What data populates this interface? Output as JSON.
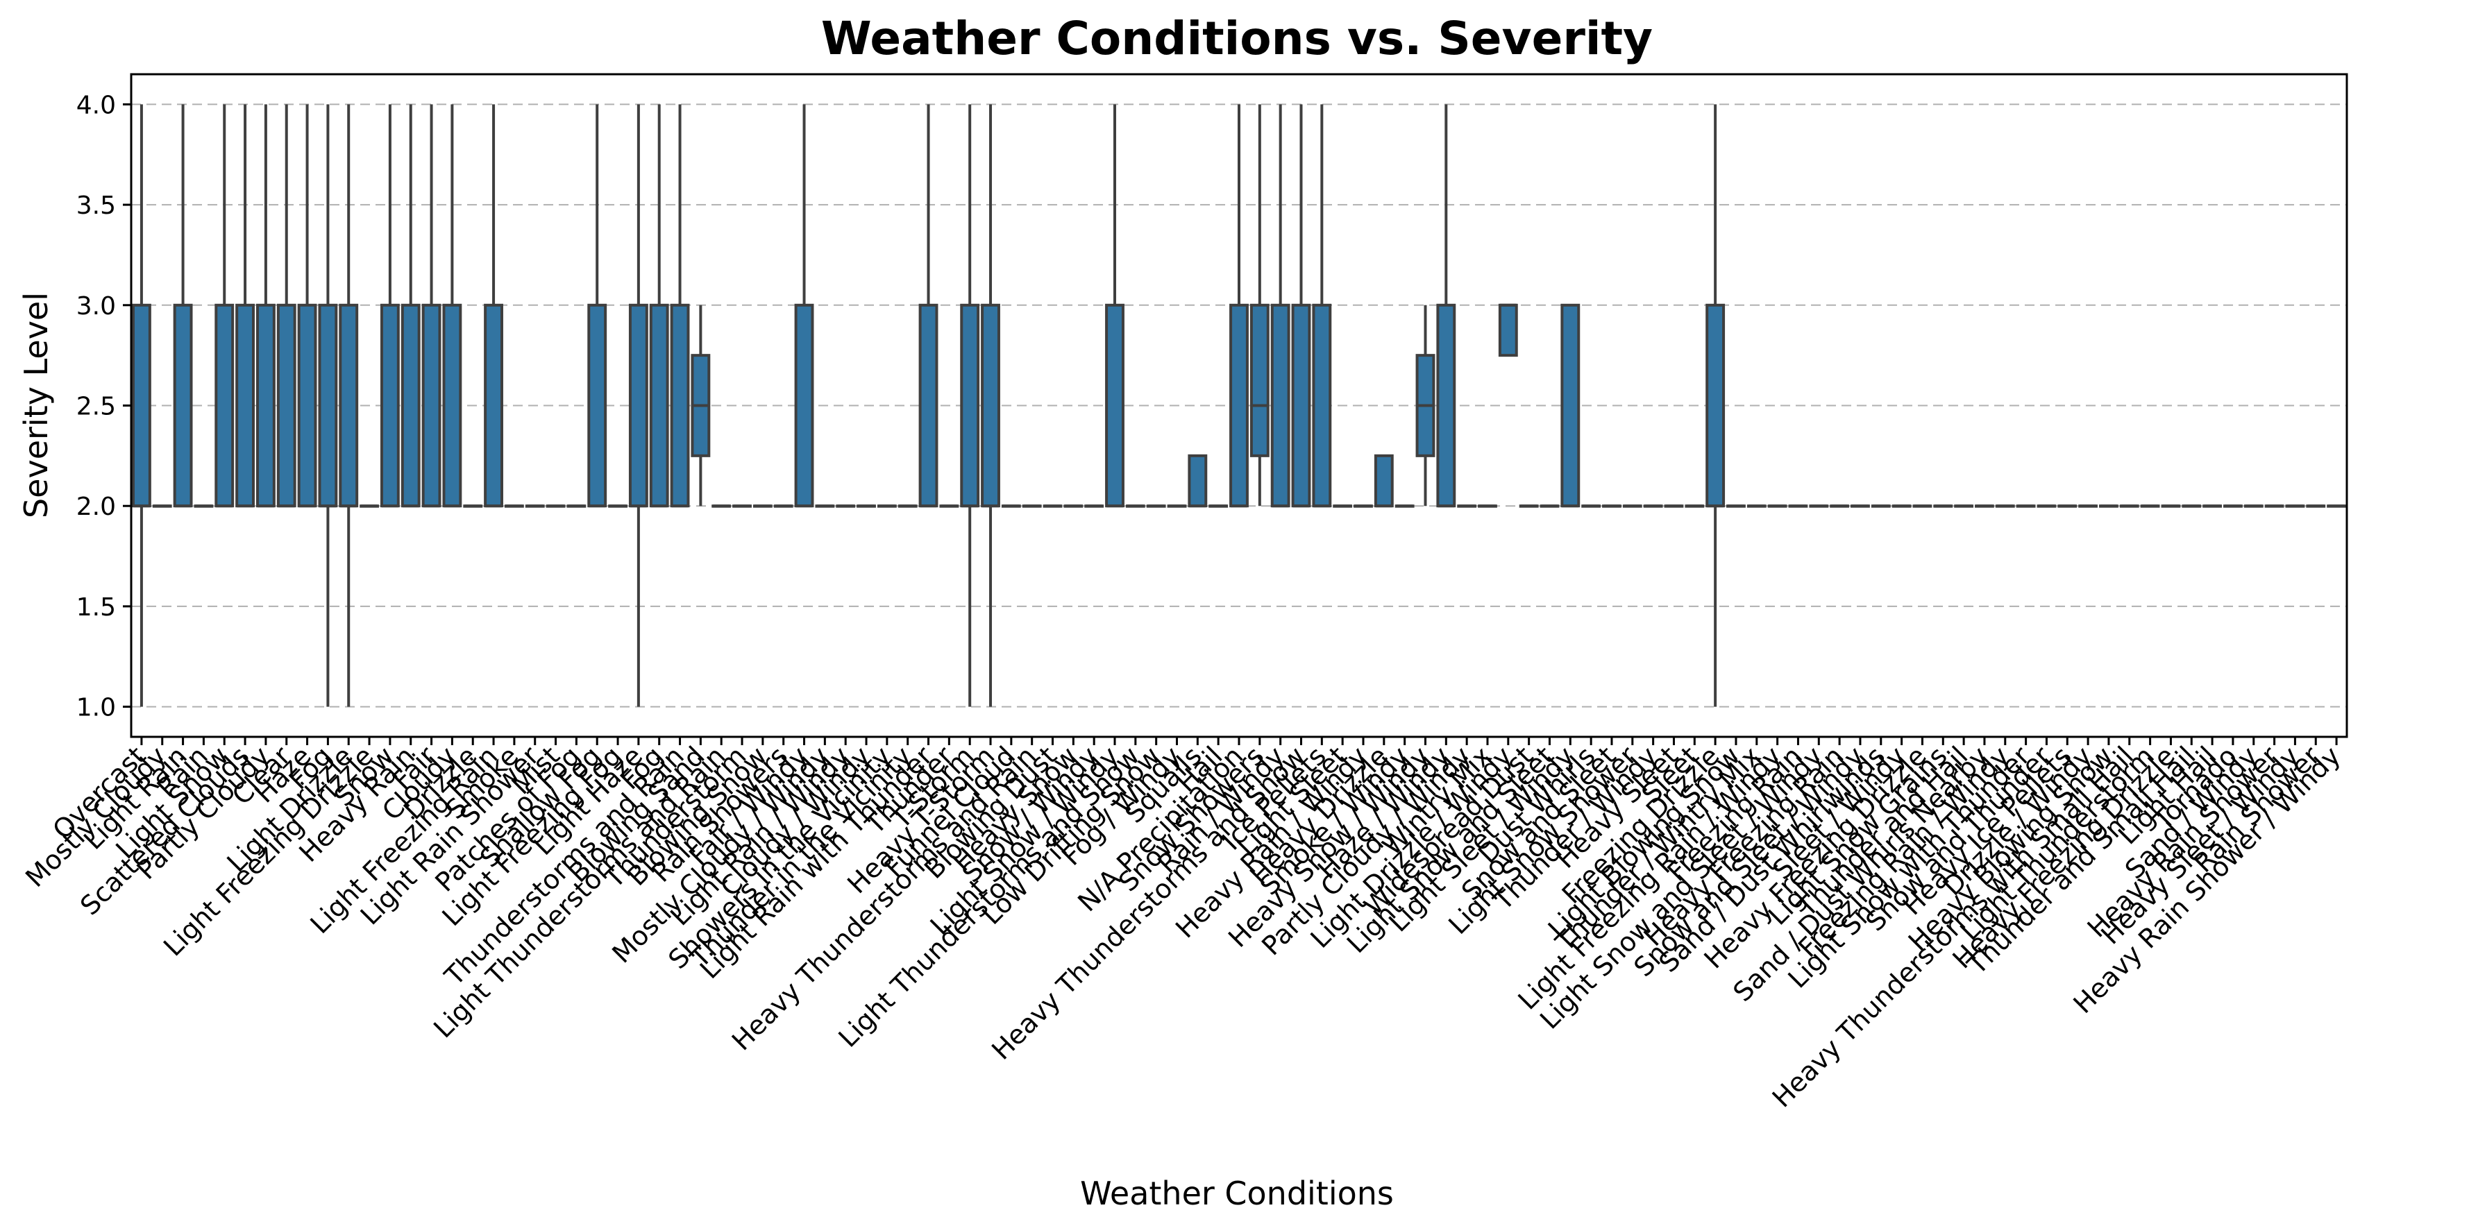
{
  "chart_data": {
    "type": "box",
    "title": "Weather Conditions vs. Severity",
    "xlabel": "Weather Conditions",
    "ylabel": "Severity Level",
    "ylim": [
      0.85,
      4.15
    ],
    "yticks": [
      1.0,
      1.5,
      2.0,
      2.5,
      3.0,
      3.5,
      4.0
    ],
    "grid": "y-dashed",
    "box_color": "#3274a1",
    "categories": [
      "Overcast",
      "Mostly Cloudy",
      "Light Rain",
      "Rain",
      "Light Snow",
      "Scattered Clouds",
      "Partly Cloudy",
      "Clear",
      "Haze",
      "Fog",
      "Light Drizzle",
      "Light Freezing Drizzle",
      "Snow",
      "Heavy Rain",
      "Fair",
      "Cloudy",
      "Drizzle",
      "Light Freezing Rain",
      "Smoke",
      "Light Rain Shower",
      "Mist",
      "Patches of Fog",
      "Shallow Fog",
      "Light Freezing Fog",
      "Light Haze",
      "Fog",
      "Thunderstorms and Rain",
      "Blowing Sand",
      "Light Thunderstorms and Rain",
      "Thunderstorm",
      "Blowing Snow",
      "Rain Showers",
      "Fair / Windy",
      "Mostly Cloudy / Windy",
      "Light Rain / Windy",
      "Cloudy / Windy",
      "Showers in the Vicinity",
      "Thunder in the Vicinity",
      "Light Rain with Thunder",
      "Thunder",
      "T-Storm",
      "Heavy T-Storm",
      "Funnel Cloud",
      "Heavy Thunderstorms and Rain",
      "Blowing Dust",
      "Heavy Snow",
      "Snow / Windy",
      "Light Snow / Windy",
      "Light Thunderstorms and Snow",
      "Low Drifting Snow",
      "Fog / Windy",
      "Squalls",
      "Hail",
      "N/A Precipitation",
      "Snow Showers",
      "Rain / Windy",
      "Heavy Thunderstorms and Snow",
      "Ice Pellets",
      "Light Sleet",
      "Heavy Rain / Windy",
      "Heavy Drizzle",
      "Smoke / Windy",
      "Heavy Snow / Windy",
      "Haze / Windy",
      "Partly Cloudy / Windy",
      "Wintry Mix",
      "Light Drizzle / Windy",
      "Widespread Dust",
      "Light Snow and Sleet",
      "Light Sleet / Windy",
      "Dust Whirls",
      "Snow and Sleet",
      "Light Snow Shower",
      "Thunder / Windy",
      "Heavy Sleet",
      "Sleet",
      "Freezing Drizzle",
      "Light Blowing Snow",
      "Thunder / Wintry Mix",
      "Light Freezing Rain / Windy",
      "Freezing Rain",
      "Light Snow and Sleet / Windy",
      "Heavy Freezing Rain",
      "Snow and Sleet / Windy",
      "Sand / Dust Whirlwinds",
      "Sleet / Windy",
      "Heavy Freezing Drizzle",
      "Light Snow Grains",
      "Thunder and Hail",
      "Sand / Dust Whirls Nearby",
      "Freezing Rain / Windy",
      "Light Snow with Thunder",
      "Snow and Thunder",
      "Heavy Ice Pellets",
      "Drizzle / Windy",
      "Heavy Blowing Snow",
      "Heavy Thunderstorms with Small Hail",
      "Light Thunderstorm",
      "Heavy Freezing Drizzle",
      "Thunder and Small Hail",
      "Light Hail",
      "Tornado",
      "Sand / Windy",
      "Heavy Rain Shower",
      "Heavy Sleet / Windy",
      "Rain Shower",
      "Heavy Rain Shower / Windy"
    ],
    "boxes": [
      [
        1,
        2,
        2,
        3,
        4
      ],
      [
        2,
        2,
        2,
        2,
        2
      ],
      [
        2,
        2,
        2,
        3,
        4
      ],
      [
        2,
        2,
        2,
        2,
        2
      ],
      [
        2,
        2,
        2,
        3,
        4
      ],
      [
        2,
        2,
        2,
        3,
        4
      ],
      [
        2,
        2,
        2,
        3,
        4
      ],
      [
        2,
        2,
        2,
        3,
        4
      ],
      [
        2,
        2,
        2,
        3,
        4
      ],
      [
        1,
        2,
        2,
        3,
        4
      ],
      [
        1,
        2,
        2,
        3,
        4
      ],
      [
        2,
        2,
        2,
        2,
        2
      ],
      [
        2,
        2,
        2,
        3,
        4
      ],
      [
        2,
        2,
        2,
        3,
        4
      ],
      [
        2,
        2,
        2,
        3,
        4
      ],
      [
        2,
        2,
        2,
        3,
        4
      ],
      [
        2,
        2,
        2,
        2,
        2
      ],
      [
        2,
        2,
        2,
        3,
        4
      ],
      [
        2,
        2,
        2,
        2,
        2
      ],
      [
        2,
        2,
        2,
        2,
        2
      ],
      [
        2,
        2,
        2,
        2,
        2
      ],
      [
        2,
        2,
        2,
        2,
        2
      ],
      [
        2,
        2,
        2,
        3,
        4
      ],
      [
        2,
        2,
        2,
        2,
        2
      ],
      [
        1,
        2,
        2,
        3,
        4
      ],
      [
        2,
        2,
        2,
        3,
        4
      ],
      [
        2,
        2,
        2,
        3,
        4
      ],
      [
        2,
        2.25,
        2.5,
        2.75,
        3
      ],
      [
        2,
        2,
        2,
        2,
        2
      ],
      [
        2,
        2,
        2,
        2,
        2
      ],
      [
        2,
        2,
        2,
        2,
        2
      ],
      [
        2,
        2,
        2,
        2,
        2
      ],
      [
        2,
        2,
        2,
        3,
        4
      ],
      [
        2,
        2,
        2,
        2,
        2
      ],
      [
        2,
        2,
        2,
        2,
        2
      ],
      [
        2,
        2,
        2,
        2,
        2
      ],
      [
        2,
        2,
        2,
        2,
        2
      ],
      [
        2,
        2,
        2,
        2,
        2
      ],
      [
        2,
        2,
        2,
        3,
        4
      ],
      [
        2,
        2,
        2,
        2,
        2
      ],
      [
        1,
        2,
        2,
        3,
        4
      ],
      [
        1,
        2,
        2,
        3,
        4
      ],
      [
        2,
        2,
        2,
        2,
        2
      ],
      [
        2,
        2,
        2,
        2,
        2
      ],
      [
        2,
        2,
        2,
        2,
        2
      ],
      [
        2,
        2,
        2,
        2,
        2
      ],
      [
        2,
        2,
        2,
        2,
        2
      ],
      [
        2,
        2,
        2,
        3,
        4
      ],
      [
        2,
        2,
        2,
        2,
        2
      ],
      [
        2,
        2,
        2,
        2,
        2
      ],
      [
        2,
        2,
        2,
        2,
        2
      ],
      [
        2,
        2,
        2,
        2.25,
        2.25
      ],
      [
        2,
        2,
        2,
        2,
        2
      ],
      [
        2,
        2,
        2,
        3,
        4
      ],
      [
        2,
        2.25,
        2.5,
        3,
        4
      ],
      [
        2,
        2,
        2,
        3,
        4
      ],
      [
        2,
        2,
        2,
        3,
        4
      ],
      [
        2,
        2,
        2,
        3,
        4
      ],
      [
        2,
        2,
        2,
        2,
        2
      ],
      [
        2,
        2,
        2,
        2,
        2
      ],
      [
        2,
        2,
        2,
        2.25,
        2.25
      ],
      [
        2,
        2,
        2,
        2,
        2
      ],
      [
        2,
        2.25,
        2.5,
        2.75,
        3
      ],
      [
        2,
        2,
        2,
        3,
        4
      ],
      [
        2,
        2,
        2,
        2,
        2
      ],
      [
        2,
        2,
        2,
        2,
        2
      ],
      [
        3,
        2.75,
        3,
        3,
        3
      ],
      [
        2,
        2,
        2,
        2,
        2
      ],
      [
        2,
        2,
        2,
        2,
        2
      ],
      [
        2,
        2,
        2,
        3,
        3
      ],
      [
        2,
        2,
        2,
        2,
        2
      ],
      [
        2,
        2,
        2,
        2,
        2
      ],
      [
        2,
        2,
        2,
        2,
        2
      ],
      [
        2,
        2,
        2,
        2,
        2
      ],
      [
        2,
        2,
        2,
        2,
        2
      ],
      [
        2,
        2,
        2,
        2,
        2
      ],
      [
        1,
        2,
        2,
        3,
        4
      ],
      [
        2,
        2,
        2,
        2,
        2
      ],
      [
        2,
        2,
        2,
        2,
        2
      ],
      [
        2,
        2,
        2,
        2,
        2
      ],
      [
        2,
        2,
        2,
        2,
        2
      ],
      [
        2,
        2,
        2,
        2,
        2
      ],
      [
        2,
        2,
        2,
        2,
        2
      ],
      [
        2,
        2,
        2,
        2,
        2
      ],
      [
        2,
        2,
        2,
        2,
        2
      ],
      [
        2,
        2,
        2,
        2,
        2
      ],
      [
        2,
        2,
        2,
        2,
        2
      ],
      [
        2,
        2,
        2,
        2,
        2
      ],
      [
        2,
        2,
        2,
        2,
        2
      ],
      [
        2,
        2,
        2,
        2,
        2
      ],
      [
        2,
        2,
        2,
        2,
        2
      ],
      [
        2,
        2,
        2,
        2,
        2
      ],
      [
        2,
        2,
        2,
        2,
        2
      ],
      [
        2,
        2,
        2,
        2,
        2
      ],
      [
        2,
        2,
        2,
        2,
        2
      ],
      [
        2,
        2,
        2,
        2,
        2
      ],
      [
        2,
        2,
        2,
        2,
        2
      ],
      [
        2,
        2,
        2,
        2,
        2
      ],
      [
        2,
        2,
        2,
        2,
        2
      ],
      [
        2,
        2,
        2,
        2,
        2
      ],
      [
        2,
        2,
        2,
        2,
        2
      ],
      [
        2,
        2,
        2,
        2,
        2
      ],
      [
        2,
        2,
        2,
        2,
        2
      ],
      [
        2,
        2,
        2,
        2,
        2
      ],
      [
        2,
        2,
        2,
        2,
        2
      ],
      [
        2,
        2,
        2,
        2,
        2
      ],
      [
        2,
        2,
        2,
        2,
        2
      ]
    ]
  }
}
